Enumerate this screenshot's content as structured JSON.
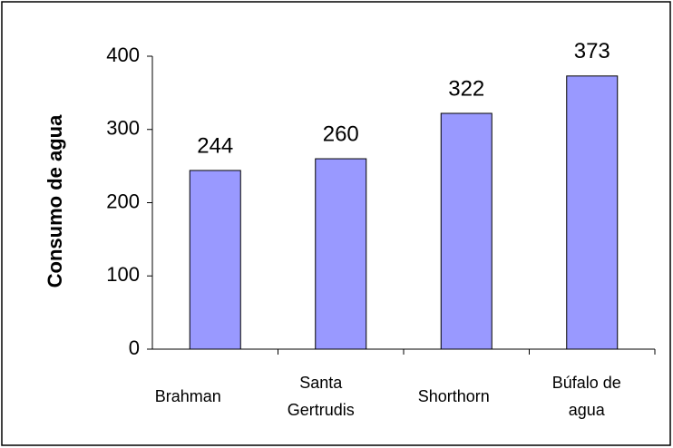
{
  "chart_data": {
    "type": "bar",
    "y_label": "Consumo de agua",
    "categories": [
      "Brahman",
      "Santa Gertrudis",
      "Shorthorn",
      "Búfalo de agua"
    ],
    "values": [
      244,
      260,
      322,
      373
    ],
    "color": "#9999ff",
    "ylim": [
      0,
      400
    ],
    "yticks": [
      0,
      100,
      200,
      300,
      400
    ],
    "grid": false
  }
}
